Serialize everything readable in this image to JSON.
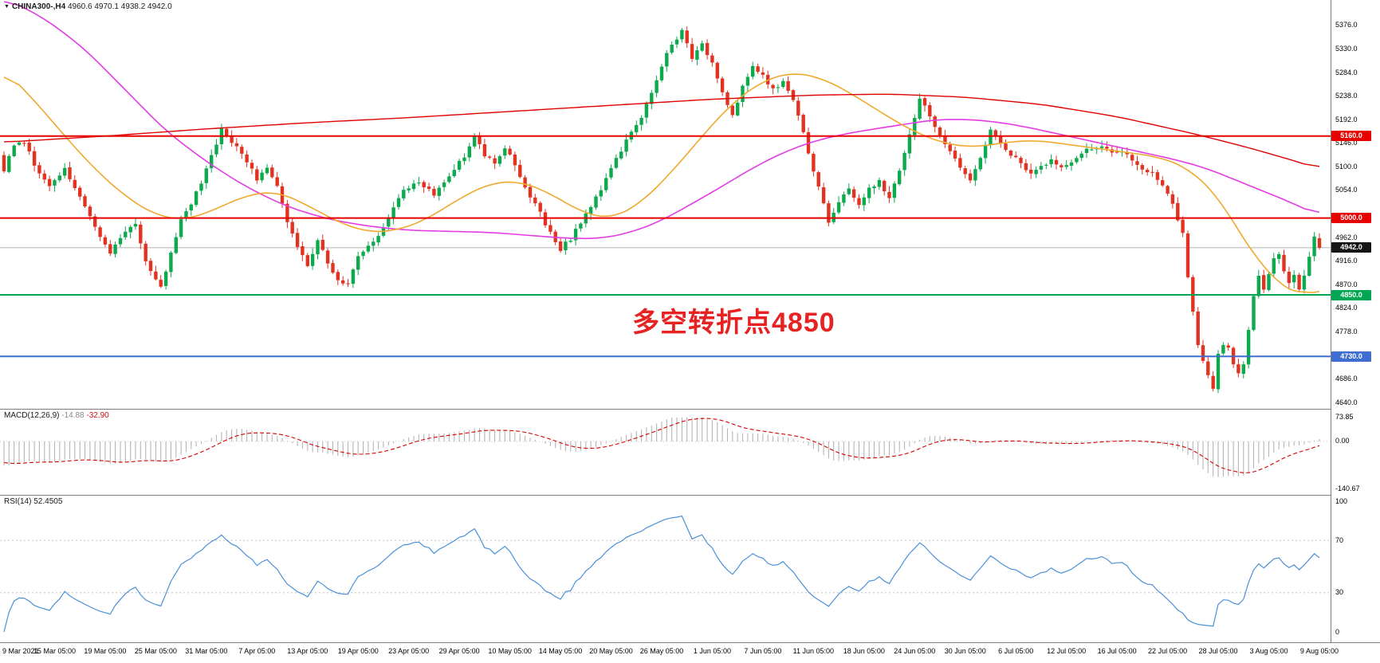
{
  "colors": {
    "bull": "#0caa4d",
    "bear": "#e23322",
    "ma_orange": "#efa92d",
    "ma_magenta": "#e43be4",
    "ma_red": "#e00000",
    "level_red": "#e60000",
    "level_green": "#00a651",
    "level_blue": "#3e6fd0",
    "current_price_black": "#141414",
    "macd_hist": "#b5b5b5",
    "macd_signal": "#d40000",
    "rsi_line": "#4a90d9",
    "annotation": "#e62222",
    "separator": "#7f7f7f"
  },
  "symbol_bar": {
    "marker": "▼",
    "title": "CHINA300-,H4",
    "ohlc": "4960.6 4970.1 4938.2 4942.0"
  },
  "annotation": {
    "text": "多空转折点4850"
  },
  "price_scale": {
    "ticks": [
      5376.0,
      5330.0,
      5284.0,
      5238.0,
      5192.0,
      5146.0,
      5100.0,
      5054.0,
      4962.0,
      4916.0,
      4870.0,
      4824.0,
      4778.0,
      4686.0,
      4640.0
    ],
    "min": 4640.0,
    "max": 5407.0
  },
  "main_chart": {
    "levels": [
      {
        "price": 5160.0,
        "label": "5160.0",
        "color": "#e60000"
      },
      {
        "price": 5000.0,
        "label": "5000.0",
        "color": "#e60000"
      },
      {
        "price": 4850.0,
        "label": "4850.0",
        "color": "#00a651"
      },
      {
        "price": 4730.0,
        "label": "4730.0",
        "color": "#3e6fd0"
      }
    ],
    "current_price": {
      "label": "4942.0",
      "value": 4942.0,
      "color": "#141414"
    }
  },
  "indicators": {
    "macd": {
      "name": "MACD(12,26,9)",
      "value_main": "-14.88",
      "value_signal": "-32.90",
      "scale": [
        "73.85",
        "0.00",
        "-140.67"
      ],
      "range": [
        73.85,
        -140.67
      ],
      "params": [
        12,
        26,
        9
      ]
    },
    "rsi": {
      "name": "RSI(14)",
      "value": "52.4505",
      "scale": [
        "100",
        "70",
        "30",
        "0"
      ],
      "levels": [
        70,
        30
      ],
      "period": 14
    }
  },
  "time_axis": {
    "labels": [
      "9 Mar 2021",
      "15 Mar 05:00",
      "19 Mar 05:00",
      "25 Mar 05:00",
      "31 Mar 05:00",
      "7 Apr 05:00",
      "13 Apr 05:00",
      "19 Apr 05:00",
      "23 Apr 05:00",
      "29 Apr 05:00",
      "10 May 05:00",
      "14 May 05:00",
      "20 May 05:00",
      "26 May 05:00",
      "1 Jun 05:00",
      "7 Jun 05:00",
      "11 Jun 05:00",
      "18 Jun 05:00",
      "24 Jun 05:00",
      "30 Jun 05:00",
      "6 Jul 05:00",
      "12 Jul 05:00",
      "16 Jul 05:00",
      "22 Jul 05:00",
      "28 Jul 05:00",
      "3 Aug 05:00",
      "9 Aug 05:00"
    ],
    "candles_per_label": 10
  },
  "chart_data": {
    "type": "candlestick",
    "symbol": "CHINA300-",
    "timeframe": "H4",
    "title": "CHINA300-,H4",
    "y_range": [
      4640.0,
      5407.0
    ],
    "last_ohlc": {
      "open": 4960.6,
      "high": 4970.1,
      "low": 4938.2,
      "close": 4942.0
    },
    "n_candles": 261,
    "warmup_candles": 40,
    "pre_close_anchors": [
      [
        0,
        5490
      ],
      [
        8,
        5455
      ],
      [
        16,
        5400
      ],
      [
        24,
        5320
      ],
      [
        32,
        5220
      ],
      [
        39,
        5120
      ]
    ],
    "close_anchors": [
      [
        0,
        5095
      ],
      [
        2,
        5140
      ],
      [
        4,
        5150
      ],
      [
        6,
        5105
      ],
      [
        9,
        5065
      ],
      [
        12,
        5095
      ],
      [
        15,
        5040
      ],
      [
        18,
        4985
      ],
      [
        21,
        4930
      ],
      [
        24,
        4975
      ],
      [
        26,
        4990
      ],
      [
        28,
        4915
      ],
      [
        31,
        4865
      ],
      [
        33,
        4930
      ],
      [
        35,
        5000
      ],
      [
        37,
        5030
      ],
      [
        39,
        5065
      ],
      [
        41,
        5120
      ],
      [
        43,
        5175
      ],
      [
        45,
        5150
      ],
      [
        47,
        5130
      ],
      [
        50,
        5075
      ],
      [
        52,
        5095
      ],
      [
        54,
        5060
      ],
      [
        56,
        4995
      ],
      [
        58,
        4945
      ],
      [
        60,
        4905
      ],
      [
        62,
        4955
      ],
      [
        64,
        4915
      ],
      [
        66,
        4880
      ],
      [
        68,
        4870
      ],
      [
        70,
        4930
      ],
      [
        73,
        4950
      ],
      [
        76,
        5005
      ],
      [
        79,
        5055
      ],
      [
        82,
        5070
      ],
      [
        85,
        5045
      ],
      [
        88,
        5085
      ],
      [
        91,
        5120
      ],
      [
        93,
        5160
      ],
      [
        95,
        5125
      ],
      [
        97,
        5110
      ],
      [
        99,
        5140
      ],
      [
        101,
        5100
      ],
      [
        103,
        5060
      ],
      [
        106,
        5010
      ],
      [
        108,
        4970
      ],
      [
        110,
        4940
      ],
      [
        112,
        4960
      ],
      [
        114,
        4990
      ],
      [
        117,
        5040
      ],
      [
        120,
        5095
      ],
      [
        123,
        5150
      ],
      [
        126,
        5195
      ],
      [
        128,
        5245
      ],
      [
        130,
        5300
      ],
      [
        132,
        5340
      ],
      [
        134,
        5365
      ],
      [
        136,
        5315
      ],
      [
        138,
        5345
      ],
      [
        140,
        5300
      ],
      [
        142,
        5250
      ],
      [
        144,
        5200
      ],
      [
        146,
        5255
      ],
      [
        148,
        5300
      ],
      [
        150,
        5280
      ],
      [
        152,
        5250
      ],
      [
        154,
        5270
      ],
      [
        156,
        5230
      ],
      [
        158,
        5170
      ],
      [
        160,
        5090
      ],
      [
        162,
        5030
      ],
      [
        163,
        4995
      ],
      [
        165,
        5030
      ],
      [
        167,
        5055
      ],
      [
        169,
        5025
      ],
      [
        171,
        5060
      ],
      [
        173,
        5070
      ],
      [
        175,
        5040
      ],
      [
        177,
        5090
      ],
      [
        179,
        5160
      ],
      [
        181,
        5235
      ],
      [
        183,
        5200
      ],
      [
        185,
        5160
      ],
      [
        187,
        5130
      ],
      [
        189,
        5095
      ],
      [
        191,
        5075
      ],
      [
        193,
        5120
      ],
      [
        195,
        5170
      ],
      [
        197,
        5145
      ],
      [
        199,
        5125
      ],
      [
        201,
        5105
      ],
      [
        203,
        5085
      ],
      [
        205,
        5100
      ],
      [
        207,
        5112
      ],
      [
        209,
        5098
      ],
      [
        211,
        5112
      ],
      [
        213,
        5126
      ],
      [
        215,
        5136
      ],
      [
        217,
        5140
      ],
      [
        219,
        5126
      ],
      [
        221,
        5132
      ],
      [
        223,
        5112
      ],
      [
        225,
        5096
      ],
      [
        227,
        5086
      ],
      [
        229,
        5066
      ],
      [
        231,
        5030
      ],
      [
        233,
        4968
      ],
      [
        234,
        4880
      ],
      [
        236,
        4750
      ],
      [
        238,
        4690
      ],
      [
        239,
        4665
      ],
      [
        240,
        4732
      ],
      [
        241,
        4756
      ],
      [
        242,
        4744
      ],
      [
        243,
        4718
      ],
      [
        244,
        4694
      ],
      [
        245,
        4716
      ],
      [
        246,
        4782
      ],
      [
        247,
        4846
      ],
      [
        248,
        4886
      ],
      [
        249,
        4864
      ],
      [
        250,
        4886
      ],
      [
        251,
        4920
      ],
      [
        252,
        4930
      ],
      [
        253,
        4900
      ],
      [
        254,
        4874
      ],
      [
        255,
        4890
      ],
      [
        256,
        4864
      ],
      [
        257,
        4886
      ],
      [
        258,
        4926
      ],
      [
        259,
        4964
      ],
      [
        260,
        4942
      ]
    ],
    "ma_magenta_anchors": [
      [
        0,
        5430
      ],
      [
        8,
        5390
      ],
      [
        16,
        5330
      ],
      [
        24,
        5250
      ],
      [
        32,
        5170
      ],
      [
        40,
        5110
      ],
      [
        48,
        5060
      ],
      [
        56,
        5022
      ],
      [
        64,
        4998
      ],
      [
        72,
        4984
      ],
      [
        80,
        4976
      ],
      [
        88,
        4974
      ],
      [
        96,
        4972
      ],
      [
        104,
        4966
      ],
      [
        112,
        4960
      ],
      [
        118,
        4960
      ],
      [
        124,
        4972
      ],
      [
        130,
        4995
      ],
      [
        136,
        5028
      ],
      [
        142,
        5062
      ],
      [
        148,
        5098
      ],
      [
        154,
        5128
      ],
      [
        160,
        5150
      ],
      [
        166,
        5164
      ],
      [
        172,
        5174
      ],
      [
        178,
        5183
      ],
      [
        184,
        5192
      ],
      [
        190,
        5193
      ],
      [
        196,
        5188
      ],
      [
        202,
        5178
      ],
      [
        208,
        5165
      ],
      [
        214,
        5152
      ],
      [
        220,
        5139
      ],
      [
        226,
        5126
      ],
      [
        232,
        5113
      ],
      [
        238,
        5096
      ],
      [
        244,
        5072
      ],
      [
        250,
        5048
      ],
      [
        255,
        5028
      ],
      [
        260,
        5004
      ]
    ],
    "ma_orange_anchors": [
      [
        0,
        5290
      ],
      [
        6,
        5230
      ],
      [
        12,
        5160
      ],
      [
        18,
        5095
      ],
      [
        24,
        5042
      ],
      [
        30,
        5005
      ],
      [
        36,
        4996
      ],
      [
        42,
        5018
      ],
      [
        48,
        5045
      ],
      [
        54,
        5052
      ],
      [
        60,
        5025
      ],
      [
        66,
        4992
      ],
      [
        72,
        4972
      ],
      [
        78,
        4976
      ],
      [
        84,
        5000
      ],
      [
        90,
        5038
      ],
      [
        96,
        5068
      ],
      [
        102,
        5072
      ],
      [
        108,
        5048
      ],
      [
        114,
        5012
      ],
      [
        120,
        4998
      ],
      [
        126,
        5030
      ],
      [
        132,
        5090
      ],
      [
        138,
        5160
      ],
      [
        144,
        5225
      ],
      [
        150,
        5268
      ],
      [
        156,
        5285
      ],
      [
        162,
        5272
      ],
      [
        168,
        5240
      ],
      [
        174,
        5202
      ],
      [
        180,
        5168
      ],
      [
        186,
        5145
      ],
      [
        192,
        5138
      ],
      [
        198,
        5148
      ],
      [
        204,
        5152
      ],
      [
        210,
        5144
      ],
      [
        216,
        5136
      ],
      [
        222,
        5128
      ],
      [
        228,
        5120
      ],
      [
        234,
        5098
      ],
      [
        240,
        5042
      ],
      [
        244,
        4975
      ],
      [
        248,
        4915
      ],
      [
        252,
        4872
      ],
      [
        256,
        4848
      ],
      [
        260,
        4862
      ]
    ],
    "ma_red_anchors": [
      [
        0,
        5148
      ],
      [
        20,
        5160
      ],
      [
        40,
        5174
      ],
      [
        60,
        5186
      ],
      [
        80,
        5196
      ],
      [
        100,
        5208
      ],
      [
        120,
        5220
      ],
      [
        140,
        5232
      ],
      [
        160,
        5240
      ],
      [
        175,
        5242
      ],
      [
        190,
        5236
      ],
      [
        205,
        5222
      ],
      [
        220,
        5198
      ],
      [
        235,
        5165
      ],
      [
        245,
        5140
      ],
      [
        255,
        5112
      ],
      [
        260,
        5096
      ]
    ],
    "horizontal_lines": [
      5160.0,
      5000.0,
      4850.0,
      4730.0
    ],
    "annotation": {
      "text": "多空转折点4850",
      "price_ref": 4850
    }
  }
}
